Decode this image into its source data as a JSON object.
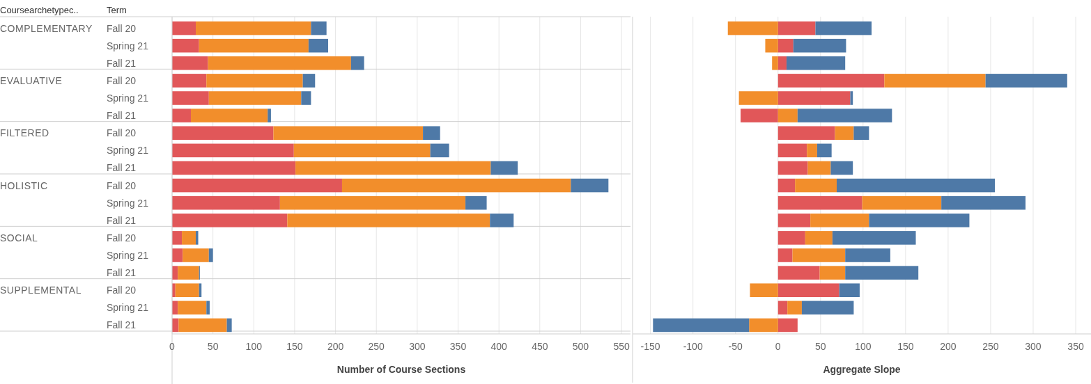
{
  "chart_data": [
    {
      "type": "bar",
      "orientation": "horizontal",
      "stacked": true,
      "xlabel": "Number of Course Sections",
      "grid": "x",
      "xlim": [
        0,
        561
      ],
      "xticks": [
        0,
        50,
        100,
        150,
        200,
        250,
        300,
        350,
        400,
        450,
        500,
        550
      ],
      "categories": [
        "Fall 20",
        "Spring 21",
        "Fall 21",
        "Fall 20",
        "Spring 21",
        "Fall 21",
        "Fall 20",
        "Spring 21",
        "Fall 21",
        "Fall 20",
        "Spring 21",
        "Fall 21",
        "Fall 20",
        "Spring 21",
        "Fall 21",
        "Fall 20",
        "Spring 21",
        "Fall 21"
      ],
      "annotations": [
        "Coursearchetypec..",
        "Term",
        "COMPLEMENTARY",
        "EVALUATIVE",
        "FILTERED",
        "HOLISTIC",
        "SOCIAL",
        "SUPPLEMENTAL"
      ],
      "series": [
        {
          "color": "#e15759",
          "values": [
            29,
            33,
            44,
            42,
            45,
            23,
            124,
            149,
            151,
            208,
            132,
            141,
            12,
            13,
            7,
            4,
            7,
            8
          ]
        },
        {
          "color": "#f28e2b",
          "values": [
            141,
            134,
            175,
            118,
            113,
            94,
            183,
            167,
            239,
            280,
            227,
            248,
            17,
            32,
            26,
            29,
            35,
            59
          ]
        },
        {
          "color": "#4e79a7",
          "values": [
            19,
            24,
            16,
            15,
            12,
            4,
            21,
            23,
            33,
            46,
            26,
            29,
            3,
            5,
            1,
            3,
            4,
            6
          ]
        }
      ]
    },
    {
      "type": "bar",
      "orientation": "horizontal",
      "stacked": true,
      "xlabel": "Aggregate Slope",
      "grid": "x",
      "tick_labels": "x",
      "xlim": [
        -171,
        368
      ],
      "xticks": [
        -150,
        -100,
        -50,
        0,
        50,
        100,
        150,
        200,
        250,
        300,
        350
      ],
      "categories": [
        null,
        null,
        null,
        null,
        null,
        null,
        null,
        null,
        null,
        null,
        null,
        null,
        null,
        null,
        null,
        null,
        null,
        null
      ],
      "series": [
        {
          "color": "#e15759",
          "values": [
            44,
            18,
            10,
            125,
            85,
            -44,
            67,
            34,
            35,
            20,
            99,
            38,
            32,
            17,
            49,
            72,
            11,
            23
          ]
        },
        {
          "color": "#f28e2b",
          "values": [
            -59,
            -15,
            -7,
            119,
            -46,
            23,
            22,
            12,
            27,
            49,
            93,
            69,
            32,
            62,
            30,
            -33,
            17,
            -34
          ]
        },
        {
          "color": "#4e79a7",
          "values": [
            66,
            62,
            69,
            96,
            3,
            111,
            18,
            17,
            26,
            186,
            99,
            118,
            98,
            53,
            86,
            24,
            61,
            -113
          ]
        }
      ]
    }
  ]
}
